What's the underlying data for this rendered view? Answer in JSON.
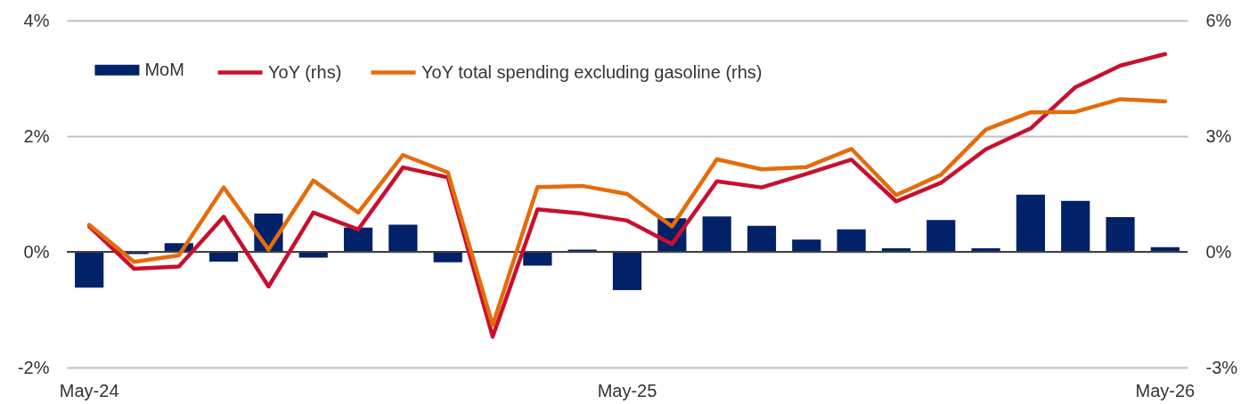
{
  "chart_data": {
    "type": "bar",
    "categories": [
      "May-24",
      null,
      null,
      null,
      null,
      null,
      null,
      null,
      null,
      null,
      null,
      null,
      "May-25",
      null,
      null,
      null,
      null,
      null,
      null,
      null,
      null,
      null,
      null,
      null,
      "May-26"
    ],
    "series": [
      {
        "name": "MoM",
        "color": "#012169",
        "values": [
          -0.62,
          -0.04,
          0.15,
          -0.17,
          0.66,
          -0.1,
          0.42,
          0.47,
          -0.18,
          null,
          -0.24,
          0.04,
          -0.66,
          0.58,
          0.61,
          0.45,
          0.21,
          0.39,
          0.06,
          0.55,
          0.06,
          0.99,
          0.88,
          0.6,
          0.08
        ]
      },
      {
        "name": "YoY (rhs)",
        "type": "line",
        "axis": "y2",
        "color": "#c8102e",
        "values": [
          0.66,
          -0.44,
          -0.38,
          0.91,
          -0.9,
          1.02,
          0.58,
          2.19,
          1.93,
          -2.2,
          1.1,
          0.99,
          0.81,
          0.2,
          1.83,
          1.67,
          2.02,
          2.39,
          1.31,
          1.79,
          2.66,
          3.2,
          4.27,
          4.83,
          5.13
        ]
      },
      {
        "name": "YoY total spending excluding gasoline (rhs)",
        "type": "line",
        "axis": "y2",
        "color": "#e46c0a",
        "values": [
          0.7,
          -0.26,
          -0.09,
          1.67,
          0.06,
          1.85,
          1.02,
          2.51,
          2.06,
          -1.9,
          1.68,
          1.71,
          1.5,
          0.66,
          2.4,
          2.14,
          2.2,
          2.67,
          1.47,
          2.0,
          3.17,
          3.62,
          3.63,
          3.96,
          3.9
        ]
      }
    ],
    "ylim": [
      -2,
      4
    ],
    "yticks": [
      {
        "value": -2,
        "label": "-2%"
      },
      {
        "value": 0,
        "label": "0%"
      },
      {
        "value": 2,
        "label": "2%"
      },
      {
        "value": 4,
        "label": "4%"
      }
    ],
    "y2lim": [
      -3,
      6
    ],
    "y2ticks": [
      {
        "value": -3,
        "label": "-3%"
      },
      {
        "value": 0,
        "label": "0%"
      },
      {
        "value": 3,
        "label": "3%"
      },
      {
        "value": 6,
        "label": "6%"
      }
    ],
    "ref_lines": [
      {
        "axis": "y",
        "value": 0,
        "color": "#404040"
      }
    ],
    "grid": "y",
    "legend": "top left"
  }
}
